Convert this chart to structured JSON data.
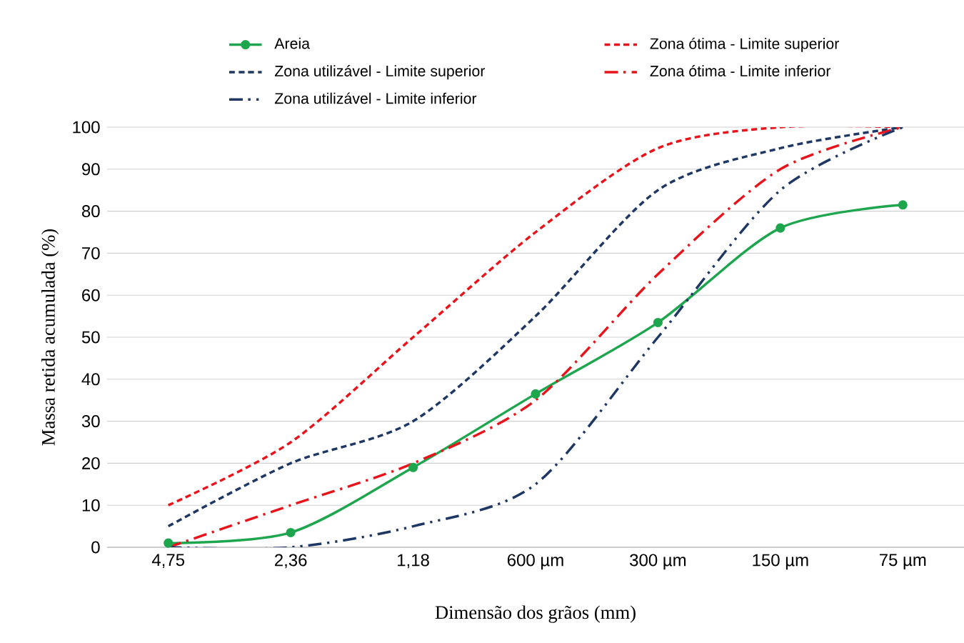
{
  "chart_data": {
    "type": "line",
    "xlabel": "Dimensão dos grãos (mm)",
    "ylabel": "Massa retida acumulada (%)",
    "categories": [
      "4,75",
      "2,36",
      "1,18",
      "600 µm",
      "300 µm",
      "150 µm",
      "75 µm"
    ],
    "series": [
      {
        "name": "Areia",
        "color": "#1ea64f",
        "values": [
          1,
          3.5,
          19,
          36.5,
          53.5,
          76,
          81.5
        ],
        "marker": "circle",
        "line_style": "solid"
      },
      {
        "name": "Zona ótima - Limite superior",
        "color": "#e8141c",
        "values": [
          10,
          25,
          50,
          75,
          95,
          100,
          100
        ],
        "marker": "none",
        "line_style": "dashed"
      },
      {
        "name": "Zona utilizável - Limite superior",
        "color": "#1f3763",
        "values": [
          5,
          20,
          30,
          55,
          85,
          95,
          100
        ],
        "marker": "none",
        "line_style": "dashed"
      },
      {
        "name": "Zona ótima - Limite inferior",
        "color": "#e8141c",
        "values": [
          0,
          10,
          20,
          35,
          65,
          90,
          100
        ],
        "marker": "none",
        "line_style": "dashdot"
      },
      {
        "name": "Zona utilizável - Limite inferior",
        "color": "#1f3763",
        "values": [
          0,
          0,
          5,
          15,
          50,
          85,
          100
        ],
        "marker": "none",
        "line_style": "dashdotdot"
      }
    ],
    "ylim": [
      0,
      100
    ],
    "yticks": [
      0,
      10,
      20,
      30,
      40,
      50,
      60,
      70,
      80,
      90,
      100
    ],
    "grid": "y",
    "legend": "top"
  }
}
